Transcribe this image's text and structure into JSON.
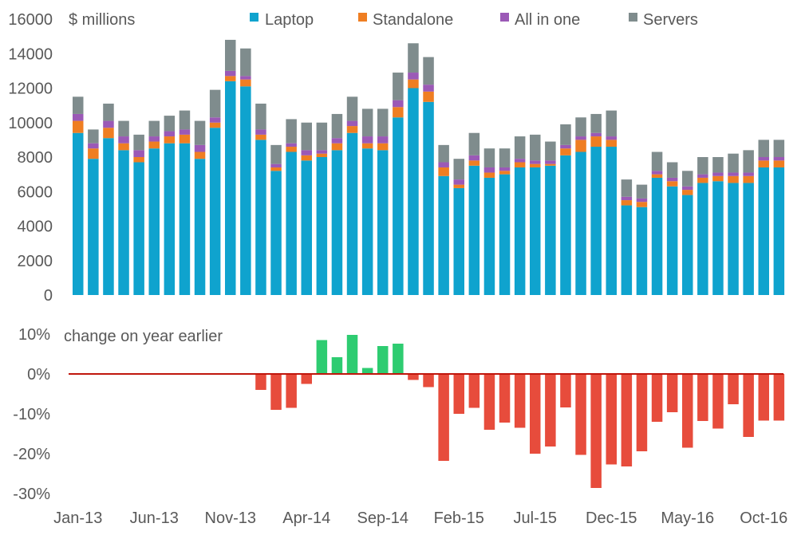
{
  "chart_data": [
    {
      "type": "bar",
      "stacked": true,
      "unit_label": "$ millions",
      "categories": [
        "Jan-13",
        "Feb-13",
        "Mar-13",
        "Apr-13",
        "May-13",
        "Jun-13",
        "Jul-13",
        "Aug-13",
        "Sep-13",
        "Oct-13",
        "Nov-13",
        "Dec-13",
        "Jan-14",
        "Feb-14",
        "Mar-14",
        "Apr-14",
        "May-14",
        "Jun-14",
        "Jul-14",
        "Aug-14",
        "Sep-14",
        "Oct-14",
        "Nov-14",
        "Dec-14",
        "Jan-15",
        "Feb-15",
        "Mar-15",
        "Apr-15",
        "May-15",
        "Jun-15",
        "Jul-15",
        "Aug-15",
        "Sep-15",
        "Oct-15",
        "Nov-15",
        "Dec-15",
        "Jan-16",
        "Feb-16",
        "Mar-16",
        "Apr-16",
        "May-16",
        "Jun-16",
        "Jul-16",
        "Aug-16",
        "Sep-16",
        "Oct-16",
        "Nov-16"
      ],
      "x_tick_labels": [
        "Jan-13",
        "Jun-13",
        "Nov-13",
        "Apr-14",
        "Sep-14",
        "Feb-15",
        "Jul-15",
        "Dec-15",
        "May-16",
        "Oct-16"
      ],
      "x_tick_label_positions": [
        "Jan-13",
        "Jun-13",
        "Nov-13",
        "Apr-14",
        "Sep-14",
        "Feb-15",
        "Jul-15",
        "Dec-15",
        "May-16",
        "Oct-16"
      ],
      "ylim": [
        0,
        16000
      ],
      "yticks": [
        0,
        2000,
        4000,
        6000,
        8000,
        10000,
        12000,
        14000,
        16000
      ],
      "legend_position": "top",
      "series": [
        {
          "name": "Laptop",
          "color": "#0FA3CE",
          "values": [
            9400,
            7900,
            9100,
            8400,
            7700,
            8500,
            8800,
            8800,
            7900,
            9700,
            12400,
            12100,
            9000,
            7200,
            8300,
            7800,
            8000,
            8400,
            9400,
            8500,
            8400,
            10300,
            12000,
            11200,
            6900,
            6200,
            7500,
            6800,
            7000,
            7400,
            7400,
            7500,
            8100,
            8300,
            8600,
            8600,
            5200,
            5100,
            6800,
            6300,
            5800,
            6500,
            6600,
            6500,
            6500,
            7400,
            7400
          ]
        },
        {
          "name": "Standalone",
          "color": "#EF7E22",
          "values": [
            700,
            600,
            600,
            400,
            300,
            400,
            400,
            500,
            400,
            300,
            300,
            400,
            300,
            200,
            300,
            300,
            200,
            400,
            400,
            300,
            400,
            600,
            500,
            600,
            500,
            200,
            300,
            300,
            200,
            300,
            200,
            100,
            400,
            700,
            600,
            400,
            300,
            300,
            200,
            300,
            300,
            300,
            300,
            400,
            400,
            400,
            400
          ]
        },
        {
          "name": "All in one",
          "color": "#9B59B6",
          "values": [
            400,
            300,
            400,
            400,
            400,
            300,
            300,
            300,
            400,
            300,
            300,
            200,
            300,
            200,
            200,
            300,
            200,
            300,
            300,
            400,
            400,
            400,
            400,
            400,
            300,
            300,
            300,
            300,
            200,
            200,
            200,
            200,
            200,
            200,
            200,
            200,
            200,
            200,
            200,
            200,
            200,
            200,
            200,
            200,
            200,
            200,
            200
          ]
        },
        {
          "name": "Servers",
          "color": "#7F8C8D",
          "values": [
            1000,
            800,
            1000,
            900,
            900,
            900,
            900,
            1100,
            1400,
            1600,
            1800,
            1600,
            1500,
            1100,
            1400,
            1600,
            1600,
            1400,
            1400,
            1600,
            1600,
            1600,
            1700,
            1600,
            1000,
            1200,
            1300,
            1100,
            1100,
            1300,
            1500,
            1100,
            1200,
            1100,
            1100,
            1500,
            1000,
            800,
            1100,
            900,
            900,
            1000,
            900,
            1100,
            1300,
            1000,
            1000
          ]
        }
      ]
    },
    {
      "type": "bar",
      "title": "change on year earlier",
      "categories": [
        "Jan-13",
        "Feb-13",
        "Mar-13",
        "Apr-13",
        "May-13",
        "Jun-13",
        "Jul-13",
        "Aug-13",
        "Sep-13",
        "Oct-13",
        "Nov-13",
        "Dec-13",
        "Jan-14",
        "Feb-14",
        "Mar-14",
        "Apr-14",
        "May-14",
        "Jun-14",
        "Jul-14",
        "Aug-14",
        "Sep-14",
        "Oct-14",
        "Nov-14",
        "Dec-14",
        "Jan-15",
        "Feb-15",
        "Mar-15",
        "Apr-15",
        "May-15",
        "Jun-15",
        "Jul-15",
        "Aug-15",
        "Sep-15",
        "Oct-15",
        "Nov-15",
        "Dec-15",
        "Jan-16",
        "Feb-16",
        "Mar-16",
        "Apr-16",
        "May-16",
        "Jun-16",
        "Jul-16",
        "Aug-16",
        "Sep-16",
        "Oct-16",
        "Nov-16"
      ],
      "x_tick_labels": [
        "Jan-13",
        "Jun-13",
        "Nov-13",
        "Apr-14",
        "Sep-14",
        "Feb-15",
        "Jul-15",
        "Dec-15",
        "May-16",
        "Oct-16"
      ],
      "x_tick_label_positions": [
        "Jan-13",
        "Jun-13",
        "Nov-13",
        "Apr-14",
        "Sep-14",
        "Feb-15",
        "Jul-15",
        "Dec-15",
        "May-16",
        "Oct-16"
      ],
      "ylim": [
        -30,
        10
      ],
      "yticks": [
        10,
        0,
        -10,
        -20,
        -30
      ],
      "ytick_labels": [
        "10%",
        "0%",
        "-10%",
        "-20%",
        "-30%"
      ],
      "zero_line_color": "#C0160C",
      "positive_color": "#2ECC71",
      "negative_color": "#E74C3C",
      "values": [
        null,
        null,
        null,
        null,
        null,
        null,
        null,
        null,
        null,
        null,
        null,
        null,
        -4,
        -9,
        -8.5,
        -2.5,
        8.5,
        4.2,
        9.8,
        1.5,
        7,
        7.6,
        -1.5,
        -3.3,
        -21.8,
        -10,
        -8.5,
        -14,
        -12.2,
        -13.5,
        -20,
        -18.2,
        -8.4,
        -20.3,
        -28.6,
        -22.7,
        -23.2,
        -19.4,
        -12,
        -9.6,
        -18.5,
        -11.8,
        -13.7,
        -7.6,
        -15.8,
        -11.7,
        -11.7
      ]
    }
  ]
}
